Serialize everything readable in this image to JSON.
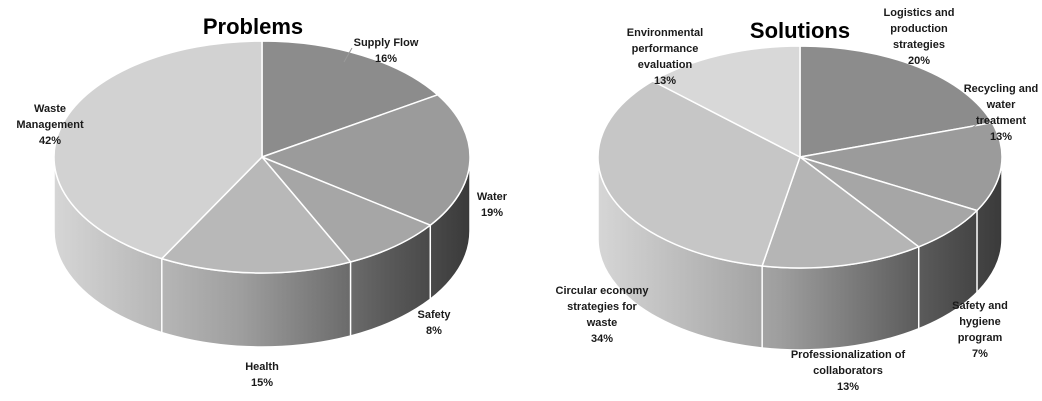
{
  "chart_data": [
    {
      "type": "pie",
      "style": "3d",
      "title": "Problems",
      "unit": "%",
      "slices": [
        {
          "name": "Supply Flow",
          "value": 16,
          "color": "#8c8c8c",
          "label_lines": [
            "Supply Flow",
            "16%"
          ]
        },
        {
          "name": "Water",
          "value": 19,
          "color": "#9b9b9b",
          "label_lines": [
            "Water",
            "19%"
          ]
        },
        {
          "name": "Safety",
          "value": 8,
          "color": "#a6a6a6",
          "label_lines": [
            "Safety",
            "8%"
          ]
        },
        {
          "name": "Health",
          "value": 15,
          "color": "#b8b8b8",
          "label_lines": [
            "Health",
            "15%"
          ]
        },
        {
          "name": "Waste Management",
          "value": 42,
          "color": "#d2d2d2",
          "label_lines": [
            "Waste",
            "Management",
            "42%"
          ]
        }
      ]
    },
    {
      "type": "pie",
      "style": "3d",
      "title": "Solutions",
      "unit": "%",
      "slices": [
        {
          "name": "Logistics and production strategies",
          "value": 20,
          "color": "#8c8c8c",
          "label_lines": [
            "Logistics and",
            "production",
            "strategies",
            "20%"
          ]
        },
        {
          "name": "Recycling and water treatment",
          "value": 13,
          "color": "#9b9b9b",
          "label_lines": [
            "Recycling and",
            "water",
            "treatment",
            "13%"
          ]
        },
        {
          "name": "Safety and hygiene program",
          "value": 7,
          "color": "#a6a6a6",
          "label_lines": [
            "Safety and",
            "hygiene",
            "program",
            "7%"
          ]
        },
        {
          "name": "Professionalization of collaborators",
          "value": 13,
          "color": "#b5b5b5",
          "label_lines": [
            "Professionalization of",
            "collaborators",
            "13%"
          ]
        },
        {
          "name": "Circular economy strategies for waste",
          "value": 34,
          "color": "#c6c6c6",
          "label_lines": [
            "Circular economy",
            "strategies for",
            "waste",
            "34%"
          ]
        },
        {
          "name": "Environmental performance evaluation",
          "value": 13,
          "color": "#d8d8d8",
          "label_lines": [
            "Environmental",
            "performance",
            "evaluation",
            "13%"
          ]
        }
      ]
    }
  ]
}
